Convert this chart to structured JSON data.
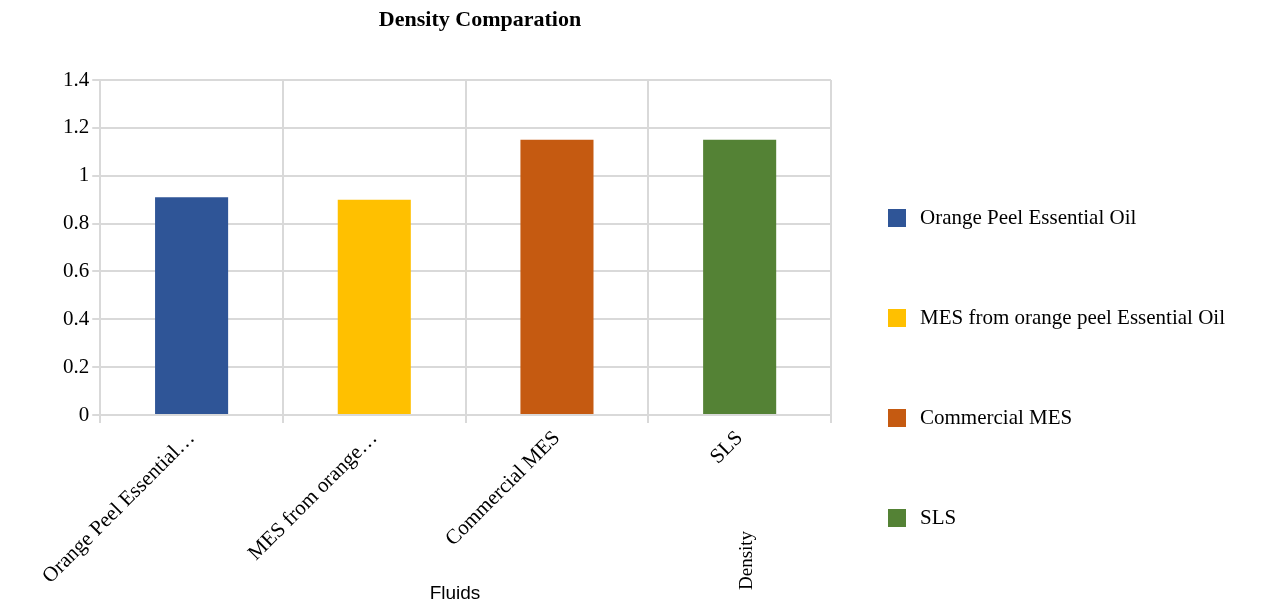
{
  "chart_data": {
    "type": "bar",
    "title": "Density Comparation",
    "xlabel": "Fluids",
    "categories": [
      "Orange Peel Essential…",
      "MES from orange…",
      "Commercial MES",
      "SLS"
    ],
    "series": [
      {
        "name": "Orange Peel Essential Oil",
        "color": "#2f5597",
        "values": [
          0.91,
          null,
          null,
          null
        ]
      },
      {
        "name": "MES from orange peel Essential Oil",
        "color": "#ffc000",
        "values": [
          null,
          0.9,
          null,
          null
        ]
      },
      {
        "name": "Commercial MES",
        "color": "#c55a11",
        "values": [
          null,
          null,
          1.15,
          null
        ]
      },
      {
        "name": "SLS",
        "color": "#548235",
        "values": [
          null,
          null,
          null,
          1.15
        ]
      }
    ],
    "ylim": [
      0,
      1.4
    ],
    "yticks": [
      0,
      0.2,
      0.4,
      0.6,
      0.8,
      1,
      1.2,
      1.4
    ],
    "grid": true,
    "legend": "right",
    "annotations": [
      "Density"
    ]
  }
}
